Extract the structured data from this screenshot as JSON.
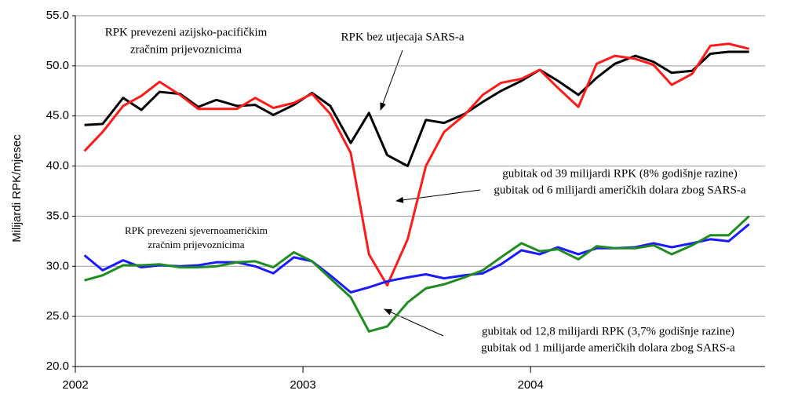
{
  "chart_data": {
    "type": "line",
    "y_label": "Milijardi RPK/mjesec",
    "x": [
      2002.04,
      2002.12,
      2002.21,
      2002.29,
      2002.37,
      2002.46,
      2002.54,
      2002.62,
      2002.71,
      2002.79,
      2002.87,
      2002.96,
      2003.04,
      2003.12,
      2003.21,
      2003.29,
      2003.37,
      2003.46,
      2003.54,
      2003.62,
      2003.71,
      2003.79,
      2003.87,
      2003.96,
      2004.04,
      2004.12,
      2004.21,
      2004.29,
      2004.37,
      2004.46,
      2004.54,
      2004.62,
      2004.71,
      2004.79,
      2004.87,
      2004.96
    ],
    "series": [
      {
        "color": "#000000",
        "values": [
          44.1,
          44.2,
          46.8,
          45.6,
          47.4,
          47.2,
          45.9,
          46.6,
          46.0,
          46.1,
          45.1,
          46.1,
          47.3,
          46.0,
          42.3,
          45.3,
          41.1,
          40.0,
          44.6,
          44.3,
          45.2,
          46.4,
          47.5,
          48.5,
          49.6,
          48.5,
          47.1,
          48.8,
          50.2,
          51.0,
          50.4,
          49.3,
          49.5,
          51.2,
          51.4,
          51.4
        ]
      },
      {
        "color": "#ff1a1a",
        "values": [
          41.5,
          43.4,
          46.0,
          47.0,
          48.4,
          47.1,
          45.7,
          45.7,
          45.7,
          46.8,
          45.8,
          46.3,
          47.2,
          45.2,
          41.3,
          31.2,
          28.1,
          32.7,
          40.0,
          43.4,
          45.1,
          47.1,
          48.3,
          48.7,
          49.6,
          47.8,
          45.9,
          50.2,
          51.0,
          50.7,
          50.1,
          48.1,
          49.2,
          52.0,
          52.2,
          51.7
        ]
      },
      {
        "color": "#1a1aff",
        "values": [
          31.1,
          29.6,
          30.6,
          29.9,
          30.1,
          30.0,
          30.1,
          30.4,
          30.4,
          30.0,
          29.3,
          30.9,
          30.5,
          29.1,
          27.4,
          27.9,
          28.5,
          28.9,
          29.2,
          28.8,
          29.1,
          29.3,
          30.2,
          31.6,
          31.2,
          31.9,
          31.2,
          31.8,
          31.8,
          31.9,
          32.3,
          31.9,
          32.3,
          32.7,
          32.5,
          34.2
        ]
      },
      {
        "color": "#1f8c1f",
        "values": [
          28.6,
          29.1,
          30.1,
          30.1,
          30.2,
          29.9,
          29.9,
          30.0,
          30.4,
          30.5,
          29.9,
          31.4,
          30.5,
          28.8,
          26.9,
          23.5,
          24.0,
          26.4,
          27.8,
          28.2,
          28.9,
          29.6,
          30.9,
          32.3,
          31.5,
          31.7,
          30.7,
          32.0,
          31.8,
          31.8,
          32.1,
          31.2,
          32.1,
          33.1,
          33.1,
          35.0
        ]
      }
    ],
    "xlim": [
      2002,
      2005.03
    ],
    "xticks": [
      2002,
      2003,
      2004
    ],
    "ylim": [
      20,
      55
    ],
    "yticks": [
      {
        "value": 20,
        "label": "20.0"
      },
      {
        "value": 25,
        "label": "25.0"
      },
      {
        "value": 30,
        "label": "30.0"
      },
      {
        "value": 35,
        "label": "35.0"
      },
      {
        "value": 40,
        "label": "40.0"
      },
      {
        "value": 45,
        "label": "45.0"
      },
      {
        "value": 50,
        "label": "50.0"
      },
      {
        "value": 55,
        "label": "55.0"
      }
    ],
    "grid": true,
    "annotations": [
      {
        "lines": [
          "RPK prevezeni azijsko-pacifičkim",
          "zračnim prijevoznicima"
        ]
      },
      {
        "lines": [
          "RPK bez utjecaja SARS-a"
        ]
      },
      {
        "lines": [
          "gubitak od 39 milijardi RPK (8% godišnje razine)",
          "gubitak od 6 milijardi američkih dolara zbog SARS-a"
        ]
      },
      {
        "lines": [
          "RPK prevezeni sjevernoameričkim",
          "zračnim prijevoznicima"
        ]
      },
      {
        "lines": [
          "gubitak od 12,8 milijardi RPK (3,7% godišnje razine)",
          "gubitak od 1 milijarde američkih dolara zbog SARS-a"
        ]
      }
    ]
  }
}
